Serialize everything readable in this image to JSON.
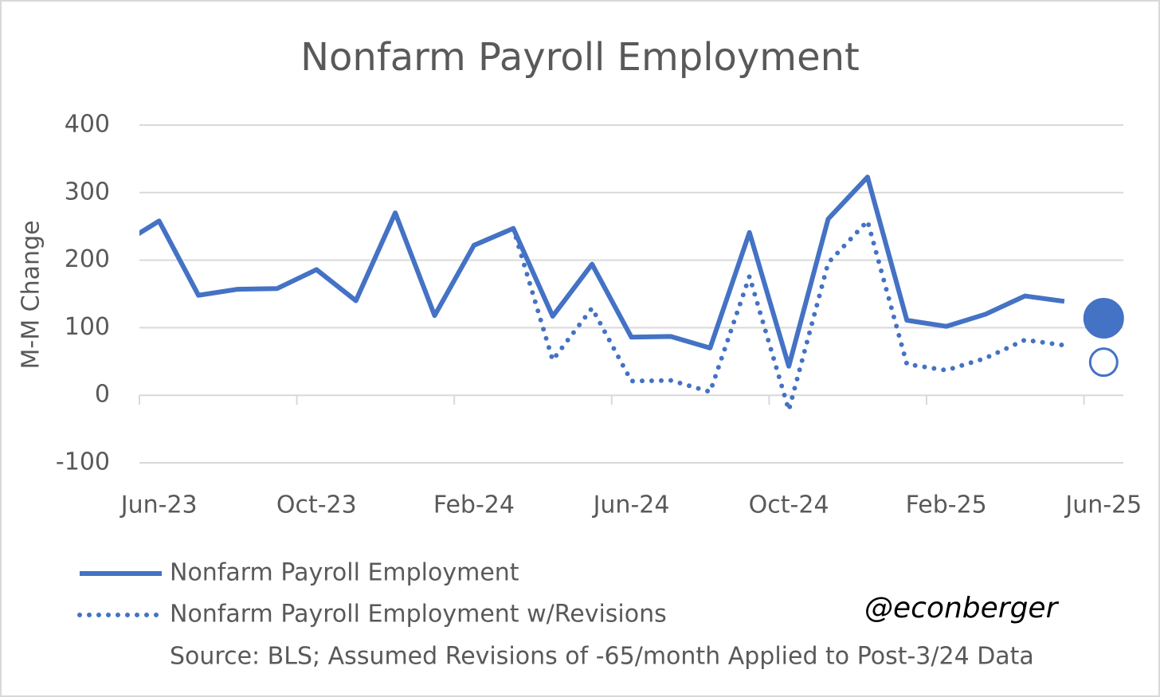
{
  "chart_data": {
    "type": "line",
    "title": "Nonfarm Payroll Employment",
    "y_label": "M-M Change",
    "categories": [
      null,
      "Jun-23",
      null,
      null,
      null,
      "Oct-23",
      null,
      null,
      null,
      "Feb-24",
      null,
      null,
      null,
      "Jun-24",
      null,
      null,
      null,
      "Oct-24",
      null,
      null,
      null,
      "Feb-25",
      null,
      null,
      null,
      "Jun-25"
    ],
    "series": [
      {
        "name": "Nonfarm Payroll Employment",
        "color": "#4472c4",
        "style": "solid",
        "values": [
          222,
          258,
          148,
          157,
          158,
          186,
          140,
          270,
          118,
          222,
          247,
          117,
          194,
          86,
          87,
          70,
          241,
          43,
          261,
          323,
          111,
          102,
          120,
          147,
          139,
          null
        ],
        "marker_value": 114,
        "marker": "filled"
      },
      {
        "name": "Nonfarm Payroll Employment w/Revisions",
        "color": "#4472c4",
        "style": "dotted",
        "values": [
          null,
          null,
          null,
          null,
          null,
          null,
          null,
          null,
          null,
          null,
          247,
          52,
          129,
          21,
          22,
          5,
          176,
          -22,
          196,
          258,
          46,
          37,
          55,
          82,
          74,
          null
        ],
        "marker_value": 49,
        "marker": "hollow"
      }
    ],
    "ylim": [
      -100,
      400
    ],
    "yticks": [
      -100,
      0,
      100,
      200,
      300,
      400
    ],
    "grid": true,
    "source": "Source: BLS; Assumed Revisions of -65/month Applied to Post-3/24 Data",
    "annotation": "@econberger"
  }
}
